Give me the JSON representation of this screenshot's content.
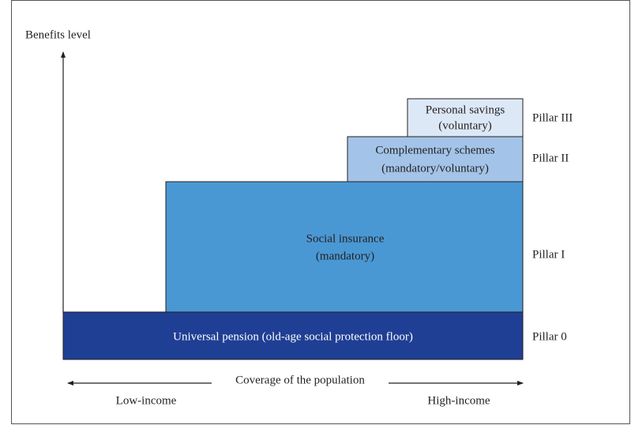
{
  "axes": {
    "y_label": "Benefits level",
    "x_label": "Coverage of the population",
    "x_left": "Low-income",
    "x_right": "High-income"
  },
  "pillars": [
    {
      "lines": [
        "Universal pension (old-age social protection floor)"
      ],
      "label": "Pillar 0"
    },
    {
      "lines": [
        "Social insurance",
        "(mandatory)"
      ],
      "label": "Pillar I"
    },
    {
      "lines": [
        "Complementary schemes",
        "(mandatory/voluntary)"
      ],
      "label": "Pillar II"
    },
    {
      "lines": [
        "Personal savings",
        "(voluntary)"
      ],
      "label": "Pillar III"
    }
  ]
}
